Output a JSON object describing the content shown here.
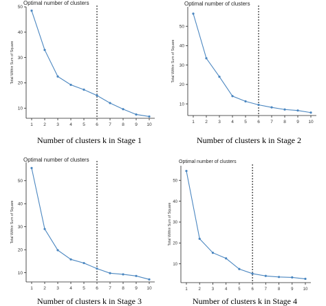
{
  "chart_data": [
    {
      "type": "line",
      "title": "Optimal number of clusters",
      "ylabel": "Total Within Sum of Square",
      "caption": "Number of clusters k in Stage 1",
      "x": [
        1,
        2,
        3,
        4,
        5,
        6,
        7,
        8,
        9,
        10
      ],
      "values": [
        48.5,
        33,
        22.5,
        19.2,
        17.3,
        15,
        12,
        9.6,
        7.5,
        6.7
      ],
      "optimal_k": 6,
      "ylim": [
        6,
        50
      ],
      "yticks": [
        10,
        20,
        30,
        40,
        50
      ],
      "color": "#4a86c0"
    },
    {
      "type": "line",
      "title": "Optimal number of clusters",
      "ylabel": "Total Within Sum of Square",
      "caption": "Number of clusters k in Stage 2",
      "x": [
        1,
        2,
        3,
        4,
        5,
        6,
        7,
        8,
        9,
        10
      ],
      "values": [
        56.5,
        33.5,
        24,
        14,
        11.3,
        9.5,
        8.2,
        7.1,
        6.6,
        5.5
      ],
      "optimal_k": 6,
      "ylim": [
        4,
        60
      ],
      "yticks": [
        10,
        20,
        30,
        40,
        50
      ],
      "color": "#4a86c0"
    },
    {
      "type": "line",
      "title": "Optimal number of clusters",
      "ylabel": "Total Within Sum of Square",
      "caption": "Number of clusters k in Stage 3",
      "x": [
        1,
        2,
        3,
        4,
        5,
        6,
        7,
        8,
        9,
        10
      ],
      "values": [
        55.5,
        29,
        19.8,
        15.8,
        14.2,
        11.8,
        9.8,
        9.3,
        8.6,
        7.1
      ],
      "optimal_k": 6,
      "ylim": [
        6,
        58
      ],
      "yticks": [
        10,
        20,
        30,
        40,
        50
      ],
      "color": "#4a86c0"
    },
    {
      "type": "line",
      "title": "Optimal number of clusters",
      "ylabel": "Total Within Sum of Square",
      "caption": "Number of clusters k in Stage 4",
      "x": [
        1,
        2,
        3,
        4,
        5,
        6,
        7,
        8,
        9,
        10
      ],
      "values": [
        54.5,
        22,
        15.3,
        12.6,
        7.5,
        5.3,
        4.2,
        3.7,
        3.5,
        2.8
      ],
      "optimal_k": 6,
      "ylim": [
        1,
        57
      ],
      "yticks": [
        10,
        20,
        30,
        40,
        50
      ],
      "color": "#4a86c0"
    }
  ]
}
